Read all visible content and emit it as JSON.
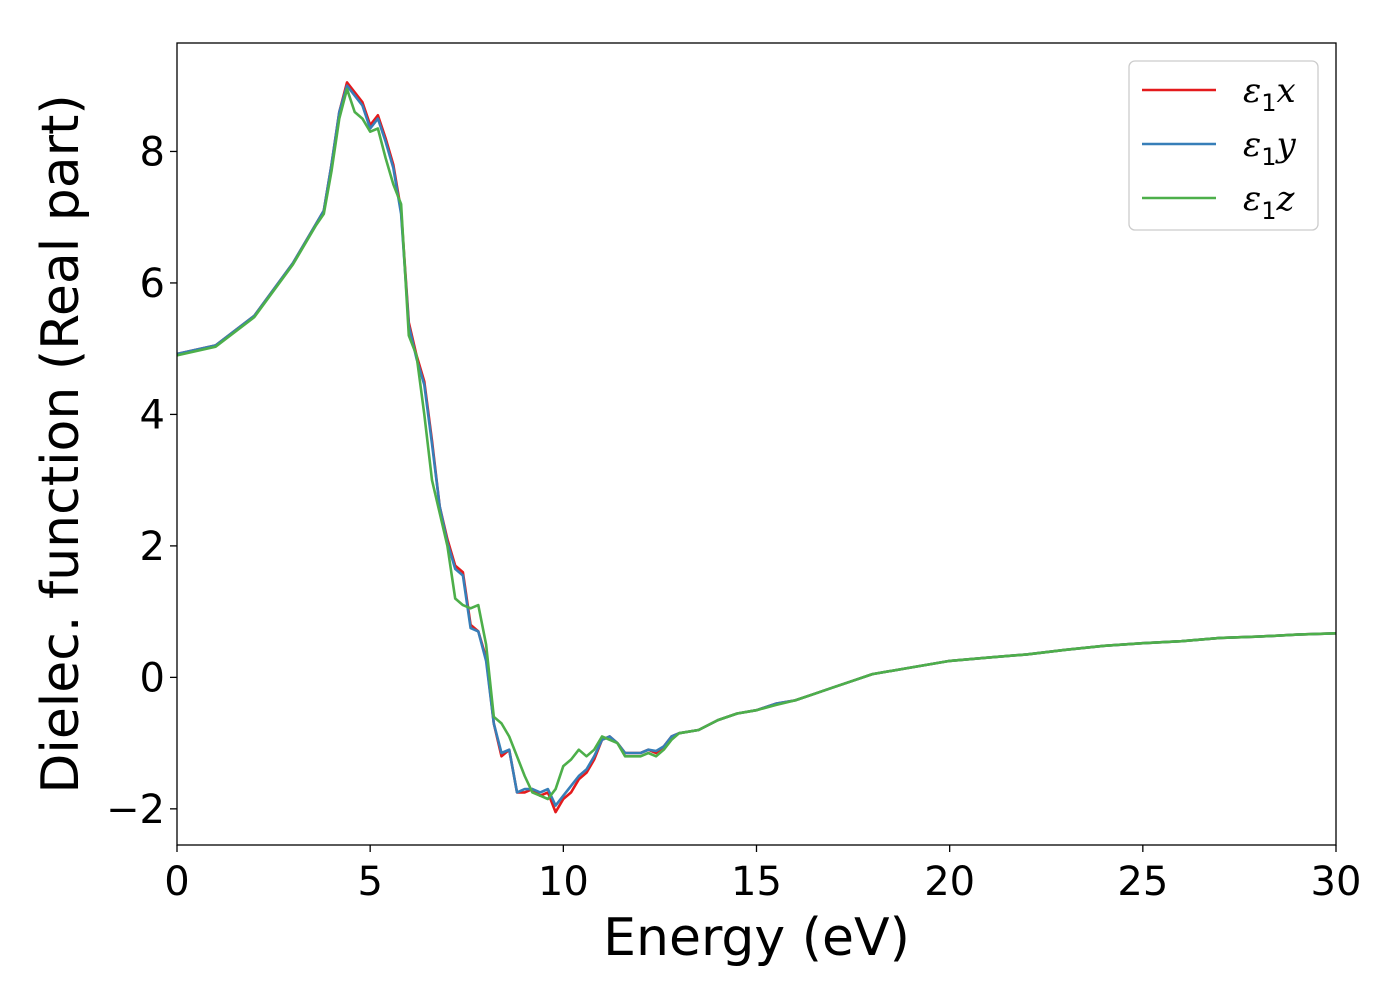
{
  "chart_data": {
    "type": "line",
    "xlabel": "Energy (eV)",
    "ylabel": "Dielec. function (Real part)",
    "xlim": [
      0,
      30
    ],
    "ylim": [
      -2.55,
      9.65
    ],
    "xticks": [
      0,
      5,
      10,
      15,
      20,
      25,
      30
    ],
    "xtick_labels": [
      "0",
      "5",
      "10",
      "15",
      "20",
      "25",
      "30"
    ],
    "yticks": [
      -2,
      0,
      2,
      4,
      6,
      8
    ],
    "ytick_labels": [
      "−2",
      "0",
      "2",
      "4",
      "6",
      "8"
    ],
    "grid": false,
    "legend_position": "top-right",
    "series": [
      {
        "name": "ε1x",
        "legend": {
          "symbol": "ε",
          "sub": "1",
          "axis": "x"
        },
        "color": "#e41a1c",
        "x": [
          0,
          1,
          2,
          3,
          3.6,
          3.8,
          4.0,
          4.2,
          4.4,
          4.6,
          4.8,
          5.0,
          5.2,
          5.4,
          5.6,
          5.8,
          6.0,
          6.2,
          6.4,
          6.6,
          6.8,
          7.0,
          7.2,
          7.4,
          7.6,
          7.8,
          8.0,
          8.2,
          8.4,
          8.6,
          8.8,
          9.0,
          9.2,
          9.4,
          9.6,
          9.8,
          10.0,
          10.2,
          10.4,
          10.6,
          10.8,
          11.0,
          11.2,
          11.4,
          11.6,
          11.8,
          12.0,
          12.2,
          12.4,
          12.6,
          12.8,
          13.0,
          13.5,
          14,
          14.5,
          15,
          15.5,
          16,
          16.5,
          17,
          17.5,
          18,
          19,
          20,
          21,
          22,
          23,
          24,
          25,
          26,
          27,
          28,
          29,
          30
        ],
        "y": [
          4.92,
          5.05,
          5.5,
          6.3,
          6.9,
          7.1,
          7.8,
          8.6,
          9.05,
          8.9,
          8.75,
          8.4,
          8.55,
          8.2,
          7.8,
          7.1,
          5.4,
          4.9,
          4.5,
          3.6,
          2.6,
          2.1,
          1.7,
          1.6,
          0.8,
          0.7,
          0.3,
          -0.7,
          -1.2,
          -1.1,
          -1.75,
          -1.75,
          -1.7,
          -1.8,
          -1.75,
          -2.05,
          -1.85,
          -1.75,
          -1.55,
          -1.45,
          -1.25,
          -0.95,
          -0.9,
          -1.0,
          -1.15,
          -1.15,
          -1.15,
          -1.1,
          -1.15,
          -1.05,
          -0.9,
          -0.85,
          -0.8,
          -0.65,
          -0.55,
          -0.5,
          -0.4,
          -0.35,
          -0.25,
          -0.15,
          -0.05,
          0.05,
          0.15,
          0.25,
          0.3,
          0.35,
          0.42,
          0.48,
          0.52,
          0.55,
          0.6,
          0.62,
          0.65,
          0.67
        ]
      },
      {
        "name": "ε1y",
        "legend": {
          "symbol": "ε",
          "sub": "1",
          "axis": "y"
        },
        "color": "#377eb8",
        "x": [
          0,
          1,
          2,
          3,
          3.6,
          3.8,
          4.0,
          4.2,
          4.4,
          4.6,
          4.8,
          5.0,
          5.2,
          5.4,
          5.6,
          5.8,
          6.0,
          6.2,
          6.4,
          6.6,
          6.8,
          7.0,
          7.2,
          7.4,
          7.6,
          7.8,
          8.0,
          8.2,
          8.4,
          8.6,
          8.8,
          9.0,
          9.2,
          9.4,
          9.6,
          9.8,
          10.0,
          10.2,
          10.4,
          10.6,
          10.8,
          11.0,
          11.2,
          11.4,
          11.6,
          11.8,
          12.0,
          12.2,
          12.4,
          12.6,
          12.8,
          13.0,
          13.5,
          14,
          14.5,
          15,
          15.5,
          16,
          16.5,
          17,
          17.5,
          18,
          19,
          20,
          21,
          22,
          23,
          24,
          25,
          26,
          27,
          28,
          29,
          30
        ],
        "y": [
          4.92,
          5.05,
          5.5,
          6.3,
          6.9,
          7.1,
          7.8,
          8.6,
          9.0,
          8.85,
          8.7,
          8.35,
          8.5,
          8.15,
          7.75,
          7.05,
          5.35,
          4.85,
          4.45,
          3.55,
          2.6,
          2.05,
          1.65,
          1.55,
          0.75,
          0.7,
          0.25,
          -0.7,
          -1.15,
          -1.1,
          -1.75,
          -1.7,
          -1.7,
          -1.75,
          -1.7,
          -1.95,
          -1.8,
          -1.65,
          -1.5,
          -1.4,
          -1.2,
          -0.95,
          -0.9,
          -1.0,
          -1.15,
          -1.15,
          -1.15,
          -1.1,
          -1.12,
          -1.05,
          -0.9,
          -0.85,
          -0.8,
          -0.65,
          -0.55,
          -0.5,
          -0.4,
          -0.35,
          -0.25,
          -0.15,
          -0.05,
          0.05,
          0.15,
          0.25,
          0.3,
          0.35,
          0.42,
          0.48,
          0.52,
          0.55,
          0.6,
          0.62,
          0.65,
          0.67
        ]
      },
      {
        "name": "ε1z",
        "legend": {
          "symbol": "ε",
          "sub": "1",
          "axis": "z"
        },
        "color": "#4daf4a",
        "x": [
          0,
          1,
          2,
          3,
          3.6,
          3.8,
          4.0,
          4.2,
          4.4,
          4.6,
          4.8,
          5.0,
          5.2,
          5.4,
          5.6,
          5.8,
          6.0,
          6.2,
          6.4,
          6.6,
          6.8,
          7.0,
          7.2,
          7.4,
          7.6,
          7.8,
          8.0,
          8.2,
          8.4,
          8.6,
          8.8,
          9.0,
          9.2,
          9.4,
          9.6,
          9.8,
          10.0,
          10.2,
          10.4,
          10.6,
          10.8,
          11.0,
          11.2,
          11.4,
          11.6,
          11.8,
          12.0,
          12.2,
          12.4,
          12.6,
          12.8,
          13.0,
          13.5,
          14,
          14.5,
          15,
          15.5,
          16,
          16.5,
          17,
          17.5,
          18,
          19,
          20,
          21,
          22,
          23,
          24,
          25,
          26,
          27,
          28,
          29,
          30
        ],
        "y": [
          4.9,
          5.03,
          5.48,
          6.28,
          6.88,
          7.05,
          7.7,
          8.5,
          8.95,
          8.6,
          8.5,
          8.3,
          8.35,
          7.9,
          7.5,
          7.2,
          5.2,
          4.9,
          4.0,
          3.0,
          2.5,
          2.0,
          1.2,
          1.1,
          1.05,
          1.1,
          0.5,
          -0.6,
          -0.7,
          -0.9,
          -1.2,
          -1.5,
          -1.75,
          -1.8,
          -1.85,
          -1.7,
          -1.35,
          -1.25,
          -1.1,
          -1.2,
          -1.1,
          -0.9,
          -0.95,
          -1.0,
          -1.2,
          -1.2,
          -1.2,
          -1.15,
          -1.2,
          -1.1,
          -0.95,
          -0.85,
          -0.8,
          -0.65,
          -0.55,
          -0.5,
          -0.42,
          -0.35,
          -0.25,
          -0.15,
          -0.05,
          0.05,
          0.15,
          0.25,
          0.3,
          0.35,
          0.42,
          0.48,
          0.52,
          0.55,
          0.6,
          0.62,
          0.65,
          0.67
        ]
      }
    ]
  }
}
